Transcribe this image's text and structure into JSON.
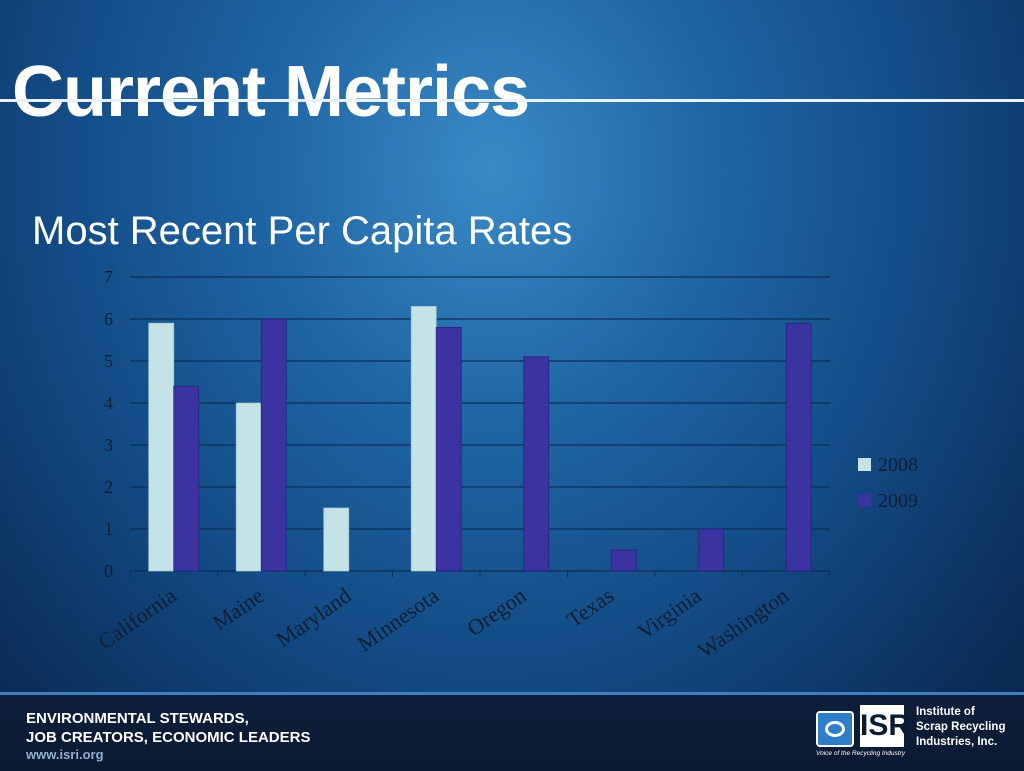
{
  "slide": {
    "title": "Current Metrics",
    "subtitle": "Most Recent Per Capita Rates"
  },
  "colors": {
    "series_2008": "#c4e3e6",
    "series_2009": "#3a33a0",
    "gridline": "#0d2f57",
    "axis_text": "#0f1f33"
  },
  "chart_data": {
    "type": "bar",
    "categories": [
      "California",
      "Maine",
      "Maryland",
      "Minnesota",
      "Oregon",
      "Texas",
      "Virginia",
      "Washington"
    ],
    "series": [
      {
        "name": "2008",
        "values": [
          5.9,
          4.0,
          1.5,
          6.3,
          null,
          null,
          null,
          null
        ]
      },
      {
        "name": "2009",
        "values": [
          4.4,
          6.0,
          null,
          5.8,
          5.1,
          0.5,
          1.0,
          5.9
        ]
      }
    ],
    "y_ticks": [
      "0",
      "1",
      "2",
      "3",
      "4",
      "5",
      "6",
      "7"
    ],
    "ylim": [
      0,
      7
    ],
    "grid": true,
    "legend_position": "right"
  },
  "footer": {
    "tagline_line1": "ENVIRONMENTAL STEWARDS,",
    "tagline_line2": "JOB CREATORS, ECONOMIC LEADERS",
    "website": "www.isri.org",
    "logo_text": "ISRI",
    "logo_tagline": "Voice of the Recycling Industry",
    "org_line1": "Institute of",
    "org_line2": "Scrap Recycling",
    "org_line3": "Industries, Inc."
  }
}
